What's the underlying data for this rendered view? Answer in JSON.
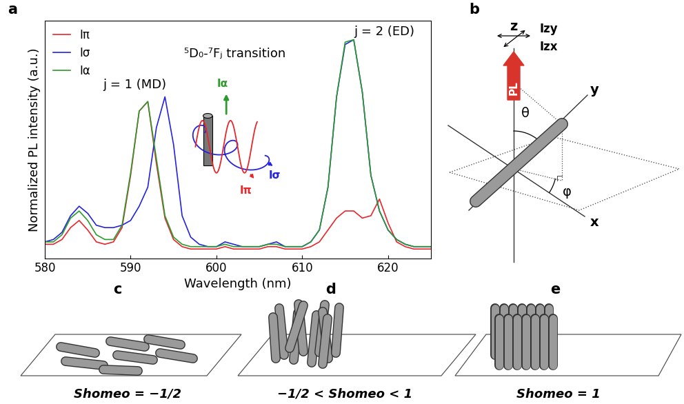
{
  "chart_data": {
    "type": "line",
    "xlabel": "Wavelength (nm)",
    "ylabel": "Normalized PL intensity (a.u.)",
    "annotations": [
      "j = 1 (MD)",
      "j = 2 (ED)",
      "⁵D₀-⁷Fⱼ transition"
    ],
    "x": [
      580,
      581,
      582,
      583,
      584,
      585,
      586,
      587,
      588,
      589,
      590,
      591,
      592,
      593,
      594,
      595,
      596,
      597,
      598,
      599,
      600,
      601,
      602,
      603,
      604,
      605,
      606,
      607,
      608,
      609,
      610,
      611,
      612,
      613,
      614,
      615,
      616,
      617,
      618,
      619,
      620,
      621,
      622,
      623,
      624,
      625
    ],
    "series": [
      {
        "name": "Iπ",
        "color": "#e8262b",
        "line_style": "solid",
        "values": [
          0.06,
          0.06,
          0.08,
          0.13,
          0.16,
          0.12,
          0.07,
          0.06,
          0.07,
          0.13,
          0.35,
          0.62,
          0.66,
          0.4,
          0.17,
          0.08,
          0.05,
          0.04,
          0.04,
          0.04,
          0.04,
          0.05,
          0.04,
          0.04,
          0.04,
          0.04,
          0.05,
          0.05,
          0.04,
          0.04,
          0.04,
          0.05,
          0.07,
          0.12,
          0.17,
          0.2,
          0.2,
          0.17,
          0.18,
          0.25,
          0.15,
          0.07,
          0.05,
          0.04,
          0.04,
          0.04
        ]
      },
      {
        "name": "Iσ",
        "color": "#2323e0",
        "line_style": "solid",
        "values": [
          0.07,
          0.08,
          0.11,
          0.18,
          0.22,
          0.19,
          0.14,
          0.13,
          0.13,
          0.14,
          0.16,
          0.22,
          0.3,
          0.55,
          0.68,
          0.48,
          0.18,
          0.09,
          0.06,
          0.05,
          0.05,
          0.07,
          0.06,
          0.05,
          0.05,
          0.05,
          0.06,
          0.07,
          0.05,
          0.05,
          0.05,
          0.07,
          0.12,
          0.3,
          0.68,
          0.9,
          0.92,
          0.7,
          0.35,
          0.2,
          0.12,
          0.08,
          0.06,
          0.05,
          0.05,
          0.05
        ]
      },
      {
        "name": "Iα",
        "color": "#2e9a2e",
        "line_style": "solid",
        "values": [
          0.07,
          0.07,
          0.1,
          0.17,
          0.2,
          0.16,
          0.1,
          0.08,
          0.08,
          0.14,
          0.36,
          0.62,
          0.66,
          0.42,
          0.18,
          0.09,
          0.06,
          0.05,
          0.05,
          0.05,
          0.05,
          0.06,
          0.05,
          0.05,
          0.05,
          0.05,
          0.06,
          0.06,
          0.05,
          0.05,
          0.05,
          0.07,
          0.12,
          0.3,
          0.68,
          0.91,
          0.92,
          0.7,
          0.35,
          0.2,
          0.12,
          0.08,
          0.06,
          0.05,
          0.05,
          0.05
        ]
      }
    ],
    "xlim": [
      580,
      625
    ],
    "xticks": [
      580,
      590,
      600,
      610,
      620
    ],
    "ylim": [
      0,
      1
    ],
    "yticks": [],
    "tick_labels": "x",
    "legend": "upper left"
  },
  "diagram": {
    "panel_labels": [
      "a",
      "b",
      "c",
      "d",
      "e"
    ],
    "coordinate_system": {
      "axes": [
        "x",
        "y",
        "z"
      ],
      "angles": [
        "θ",
        "φ"
      ],
      "emission": "PL",
      "polarizations": [
        "Izy",
        "Izx"
      ]
    },
    "orientation_cases": [
      {
        "caption": "Shomeo = −1/2"
      },
      {
        "caption": "−1/2 < Shomeo < 1"
      },
      {
        "caption": "Shomeo = 1"
      }
    ]
  }
}
